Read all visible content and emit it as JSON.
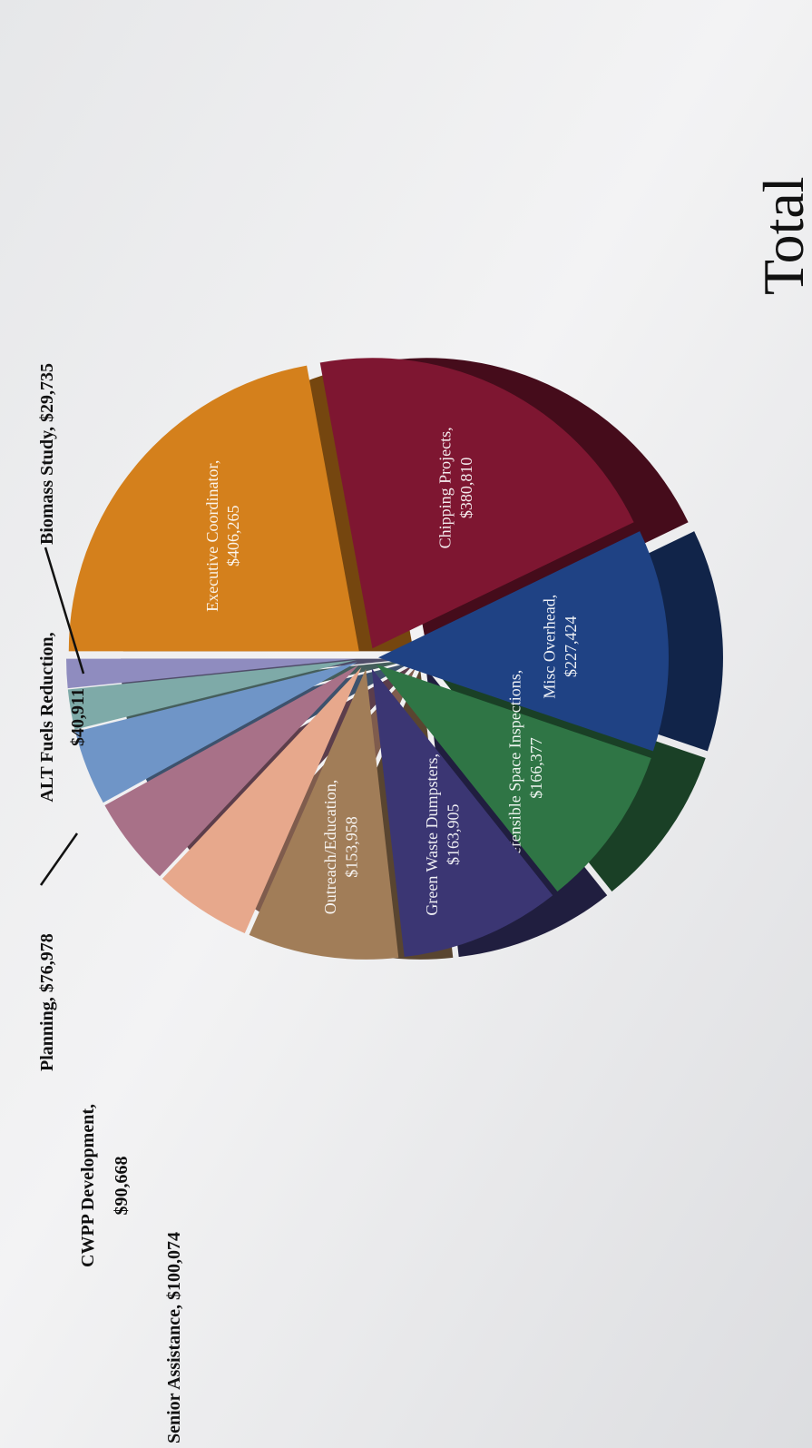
{
  "chart_data": {
    "type": "pie",
    "title": "Total",
    "currency": "$",
    "slices": [
      {
        "label": "Executive Coordinator",
        "value": 406265,
        "value_text": "$406,265",
        "color": "#d4801c",
        "external": false
      },
      {
        "label": "Chipping Projects",
        "value": 380810,
        "value_text": "$380,810",
        "color": "#7e1631",
        "external": false
      },
      {
        "label": "Misc Overhead",
        "value": 227424,
        "value_text": "$227,424",
        "color": "#1f4284",
        "external": false
      },
      {
        "label": "Defensible Space Inspections",
        "value": 166377,
        "value_text": "$166,377",
        "color": "#2f7545",
        "external": false
      },
      {
        "label": "Green Waste Dumpsters",
        "value": 163905,
        "value_text": "$163,905",
        "color": "#3b3673",
        "external": false
      },
      {
        "label": "Outreach/Education",
        "value": 153958,
        "value_text": "$153,958",
        "color": "#a17d58",
        "external": false
      },
      {
        "label": "Senior Assistance",
        "value": 100074,
        "value_text": "$100,074",
        "color": "#e7a88c",
        "external": true
      },
      {
        "label": "CWPP Development",
        "value": 90668,
        "value_text": "$90,668",
        "color": "#a87188",
        "external": true
      },
      {
        "label": "Planning",
        "value": 76978,
        "value_text": "$76,978",
        "color": "#6f95c7",
        "external": true
      },
      {
        "label": "ALT Fuels Reduction",
        "value": 40911,
        "value_text": "$40,911",
        "color": "#7eaaa8",
        "external": true
      },
      {
        "label": "Biomass Study",
        "value": 29735,
        "value_text": "$29,735",
        "color": "#8f8cbf",
        "external": true
      }
    ]
  }
}
